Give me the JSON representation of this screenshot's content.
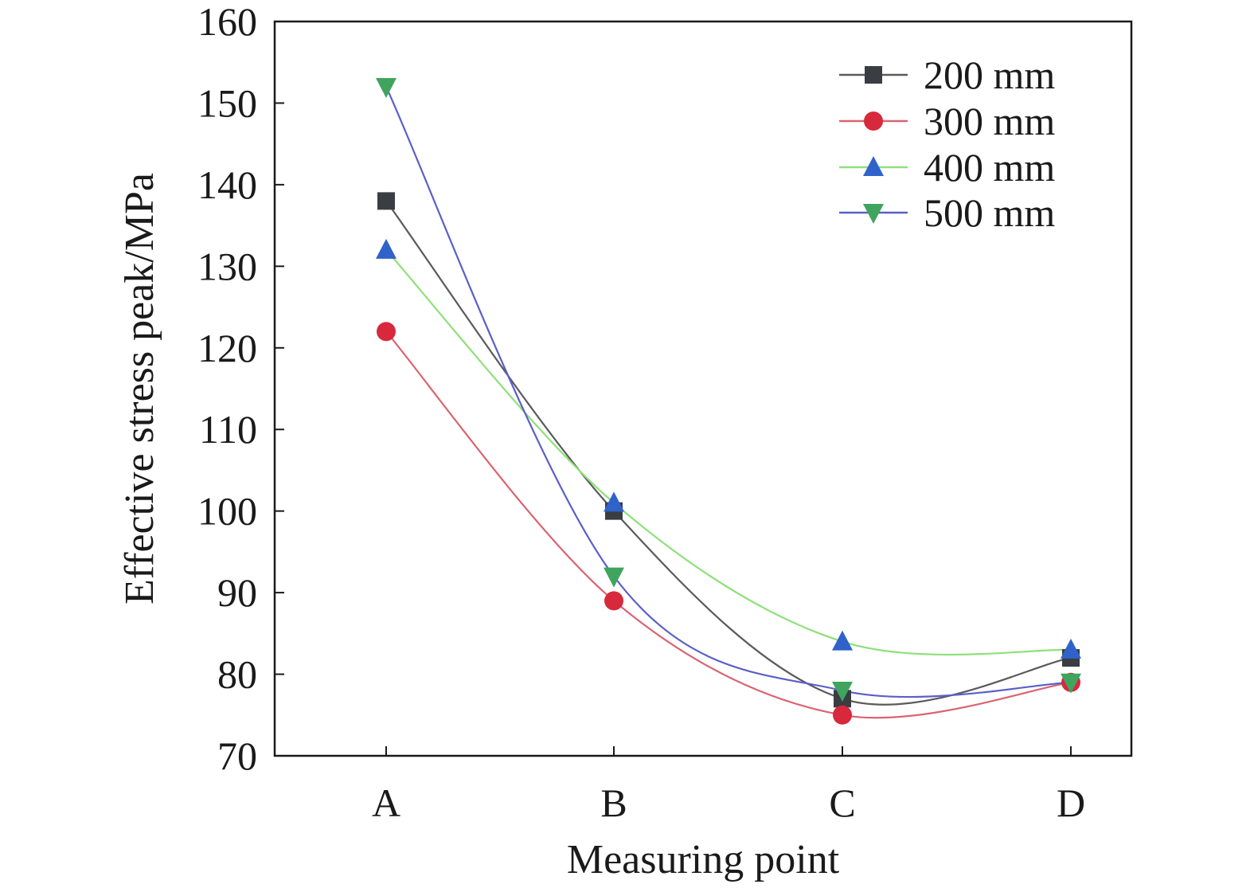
{
  "chart_data": {
    "type": "line",
    "title": "",
    "xlabel": "Measuring point",
    "ylabel": "Effective stress peak/MPa",
    "categories": [
      "A",
      "B",
      "C",
      "D"
    ],
    "ylim": [
      70,
      160
    ],
    "yticks": [
      70,
      80,
      90,
      100,
      110,
      120,
      130,
      140,
      150,
      160
    ],
    "grid": false,
    "legend_position": "top-right",
    "series": [
      {
        "name": "200 mm",
        "values": [
          138,
          100,
          77,
          82
        ],
        "line_color": "#5a5a5a",
        "marker_color": "#3a3d42",
        "marker": "square"
      },
      {
        "name": "300 mm",
        "values": [
          122,
          89,
          75,
          79
        ],
        "line_color": "#d96470",
        "marker_color": "#d8283c",
        "marker": "circle"
      },
      {
        "name": "400 mm",
        "values": [
          132,
          101,
          84,
          83
        ],
        "line_color": "#8fe07a",
        "marker_color": "#2f63c9",
        "marker": "triangle-up"
      },
      {
        "name": "500 mm",
        "values": [
          152,
          92,
          78,
          79
        ],
        "line_color": "#5a5fc9",
        "marker_color": "#3fa45e",
        "marker": "triangle-down"
      }
    ]
  }
}
